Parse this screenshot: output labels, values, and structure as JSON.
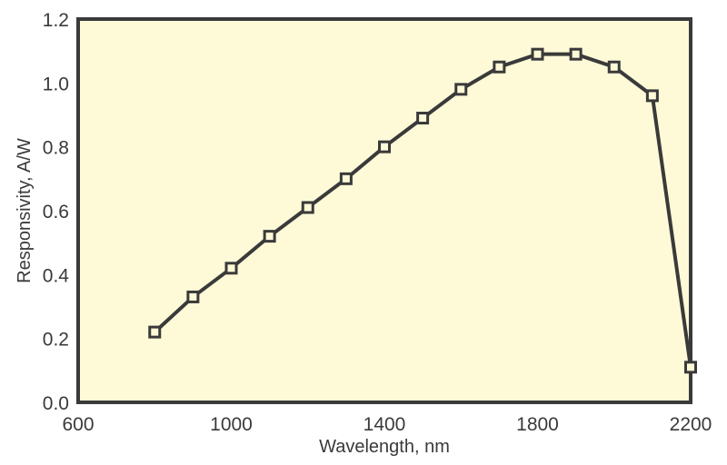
{
  "chart_data": {
    "type": "line",
    "title": "",
    "xlabel": "Wavelength, nm",
    "ylabel": "Responsivity, A/W",
    "xlim": [
      600,
      2200
    ],
    "ylim": [
      0.0,
      1.2
    ],
    "xticks": [
      600,
      1000,
      1400,
      1800,
      2200
    ],
    "xtick_labels": [
      "600",
      "1000",
      "1400",
      "1800",
      "2200"
    ],
    "yticks": [
      0.0,
      0.2,
      0.4,
      0.6,
      0.8,
      1.0,
      1.2
    ],
    "ytick_labels": [
      "0.0",
      "0.2",
      "0.4",
      "0.6",
      "0.8",
      "1.0",
      "1.2"
    ],
    "grid": false,
    "legend": null,
    "series": [
      {
        "name": "Responsivity",
        "marker": "open-square",
        "x": [
          800,
          900,
          1000,
          1100,
          1200,
          1300,
          1400,
          1500,
          1600,
          1700,
          1800,
          1900,
          2000,
          2100,
          2200
        ],
        "values": [
          0.22,
          0.33,
          0.42,
          0.52,
          0.61,
          0.7,
          0.8,
          0.89,
          0.98,
          1.05,
          1.09,
          1.09,
          1.05,
          0.96,
          0.11
        ]
      }
    ]
  },
  "colors": {
    "plot_background": "#fefad8",
    "line": "#3a3a3a",
    "frame": "#3a3a3a",
    "marker_fill": "#fefad8",
    "text": "#3a3a3a"
  }
}
